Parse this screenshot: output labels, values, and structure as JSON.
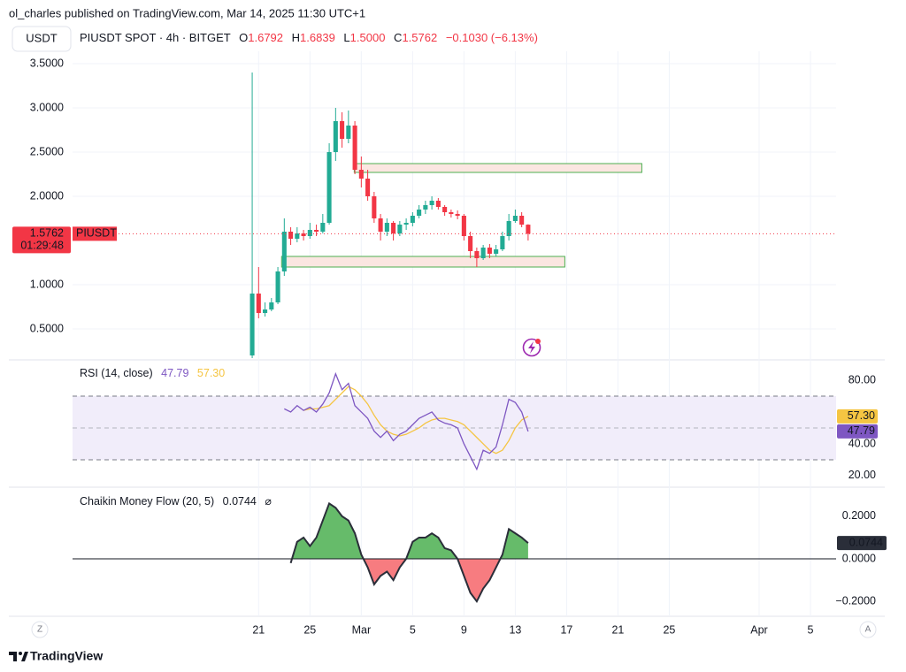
{
  "header": {
    "publisher": "ol_charles published on TradingView.com, Mar 14, 2025 11:30 UTC+1",
    "currency": "USDT"
  },
  "legend": {
    "symbol": "PIUSDT SPOT · 4h · BITGET",
    "o_label": "O",
    "open": "1.6792",
    "h_label": "H",
    "high": "1.6839",
    "l_label": "L",
    "low": "1.5000",
    "c_label": "C",
    "close": "1.5762",
    "change": "−0.1030 (−6.13%)"
  },
  "chart_data": [
    {
      "type": "candlestick",
      "x": [
        20.5,
        21,
        21.5,
        22,
        22.5,
        23,
        23.5,
        24,
        24.5,
        25,
        25.5,
        26,
        26.5,
        27,
        27.5,
        28,
        28.5,
        29,
        29.5,
        30,
        30.5,
        31,
        31.5,
        32,
        32.5,
        33,
        33.5,
        34,
        34.5,
        35,
        35.5,
        36,
        36.5,
        37,
        37.5,
        38,
        38.5,
        39,
        39.5,
        40,
        40.5,
        41,
        41.5,
        42
      ],
      "open": [
        0.2,
        0.9,
        0.68,
        0.72,
        0.8,
        1.15,
        1.6,
        1.52,
        1.58,
        1.55,
        1.62,
        1.6,
        1.7,
        2.5,
        2.85,
        2.65,
        2.8,
        2.3,
        2.2,
        2.0,
        1.75,
        1.6,
        1.7,
        1.58,
        1.68,
        1.7,
        1.78,
        1.85,
        1.9,
        1.95,
        1.88,
        1.82,
        1.8,
        1.78,
        1.55,
        1.38,
        1.3,
        1.42,
        1.35,
        1.4,
        1.55,
        1.72,
        1.78,
        1.6792
      ],
      "high": [
        3.4,
        1.2,
        0.8,
        0.85,
        1.2,
        1.75,
        1.65,
        1.65,
        1.62,
        1.7,
        1.68,
        1.8,
        2.6,
        3.0,
        2.95,
        2.97,
        2.85,
        2.45,
        2.3,
        2.05,
        1.8,
        1.75,
        1.72,
        1.72,
        1.75,
        1.82,
        1.9,
        1.95,
        2.0,
        1.98,
        1.9,
        1.85,
        1.84,
        1.8,
        1.6,
        1.42,
        1.45,
        1.46,
        1.45,
        1.6,
        1.8,
        1.85,
        1.82,
        1.6839
      ],
      "low": [
        0.17,
        0.62,
        0.64,
        0.7,
        0.78,
        1.1,
        1.45,
        1.48,
        1.5,
        1.52,
        1.55,
        1.58,
        1.68,
        2.4,
        2.55,
        2.6,
        2.25,
        2.1,
        1.95,
        1.7,
        1.5,
        1.55,
        1.5,
        1.55,
        1.62,
        1.66,
        1.75,
        1.8,
        1.85,
        1.85,
        1.78,
        1.76,
        1.74,
        1.5,
        1.3,
        1.2,
        1.28,
        1.3,
        1.32,
        1.38,
        1.5,
        1.7,
        1.65,
        1.5
      ],
      "close": [
        0.9,
        0.68,
        0.72,
        0.8,
        1.15,
        1.6,
        1.52,
        1.58,
        1.55,
        1.62,
        1.6,
        1.7,
        2.5,
        2.85,
        2.65,
        2.8,
        2.3,
        2.2,
        2.0,
        1.75,
        1.6,
        1.7,
        1.58,
        1.68,
        1.7,
        1.78,
        1.85,
        1.9,
        1.95,
        1.88,
        1.82,
        1.8,
        1.78,
        1.55,
        1.38,
        1.3,
        1.42,
        1.35,
        1.4,
        1.55,
        1.72,
        1.78,
        1.6792,
        1.5762
      ],
      "up_color": "#22ab94",
      "down_color": "#f23645",
      "xlim": [
        6.5,
        66
      ],
      "xticks": [
        21,
        25,
        {
          "value": 29,
          "label": "Mar"
        },
        {
          "value": 33,
          "label": "5"
        },
        {
          "value": 37,
          "label": "9"
        },
        {
          "value": 41,
          "label": "13"
        },
        {
          "value": 45,
          "label": "17"
        },
        {
          "value": 49,
          "label": "21"
        },
        {
          "value": 53,
          "label": "25"
        },
        {
          "value": 60,
          "label": "Apr"
        },
        {
          "value": 64,
          "label": "5"
        }
      ],
      "ylim": [
        0.17,
        3.64
      ],
      "yticks": [
        {
          "value": 3.5,
          "label": "3.5000"
        },
        {
          "value": 3,
          "label": "3.0000"
        },
        {
          "value": 2.5,
          "label": "2.5000"
        },
        {
          "value": 2,
          "label": "2.0000"
        },
        {
          "value": 1,
          "label": "1.0000"
        },
        {
          "value": 0.5,
          "label": "0.5000"
        }
      ],
      "grid": true,
      "zones": [
        {
          "x": [
            28.45,
            50.86
          ],
          "y": [
            2.27,
            2.37
          ]
        },
        {
          "x": [
            22.79,
            44.86
          ],
          "y": [
            1.2,
            1.32
          ]
        }
      ],
      "zone_fill": "#fbe6e1",
      "zone_border": "#4caf50",
      "last_price": {
        "value": 1.5762,
        "countdown": "01:29:48",
        "symbol": "PIUSDT"
      }
    },
    {
      "type": "line",
      "title": "RSI (14, close)",
      "series": [
        {
          "color": "#7e57c2",
          "values": [
            null,
            null,
            null,
            null,
            null,
            62,
            60,
            64,
            61,
            63,
            60,
            65,
            72,
            84,
            74,
            78,
            64,
            60,
            56,
            48,
            44,
            48,
            42,
            46,
            48,
            52,
            56,
            58,
            60,
            55,
            53,
            52,
            50,
            40,
            32,
            24,
            36,
            34,
            38,
            52,
            68,
            66,
            60,
            47.79
          ]
        },
        {
          "color": "#f5c542",
          "values": [
            null,
            null,
            null,
            null,
            null,
            null,
            null,
            null,
            61,
            62,
            62,
            63,
            64,
            68,
            72,
            76,
            74,
            70,
            65,
            58,
            52,
            48,
            46,
            45,
            46,
            48,
            50,
            53,
            55,
            56,
            56,
            55,
            54,
            52,
            48,
            44,
            40,
            36,
            34,
            36,
            42,
            50,
            55,
            57.3
          ]
        }
      ],
      "ylim": [
        13.3,
        91.1
      ],
      "yticks": [
        {
          "value": 80,
          "label": "80.00"
        },
        {
          "value": 40,
          "label": "40.00"
        },
        {
          "value": 20,
          "label": "20.00"
        }
      ],
      "band": [
        30,
        70
      ],
      "midline": 50,
      "band_color": "#f1edfa",
      "readouts": [
        47.79,
        {
          "value": 57.3,
          "label": "57.30"
        }
      ]
    },
    {
      "type": "area",
      "title": "Chaikin Money Flow (20, 5)",
      "values": [
        null,
        null,
        null,
        null,
        null,
        null,
        -0.02,
        0.08,
        0.1,
        0.06,
        0.1,
        0.18,
        0.26,
        0.24,
        0.2,
        0.18,
        0.12,
        0.02,
        -0.04,
        -0.12,
        -0.08,
        -0.06,
        -0.1,
        -0.04,
        0.0,
        0.08,
        0.1,
        0.1,
        0.12,
        0.1,
        0.05,
        0.04,
        0.0,
        -0.08,
        -0.16,
        -0.2,
        -0.14,
        -0.1,
        -0.04,
        0.02,
        0.14,
        0.12,
        0.1,
        0.0744
      ],
      "color": "#2a2e39",
      "positive_color": "#66bb6a",
      "negative_color": "#f77c80",
      "ylim": [
        -0.27,
        0.32
      ],
      "yticks": [
        {
          "value": 0.2,
          "label": "0.2000"
        },
        {
          "value": 0,
          "label": "0.0000"
        },
        {
          "value": -0.2,
          "label": "−0.2000"
        }
      ],
      "readout": 0.0744,
      "symbol": "⌀"
    }
  ],
  "scale_buttons": {
    "left": "Z",
    "right": "A"
  },
  "footer": {
    "brand": "TradingView"
  }
}
